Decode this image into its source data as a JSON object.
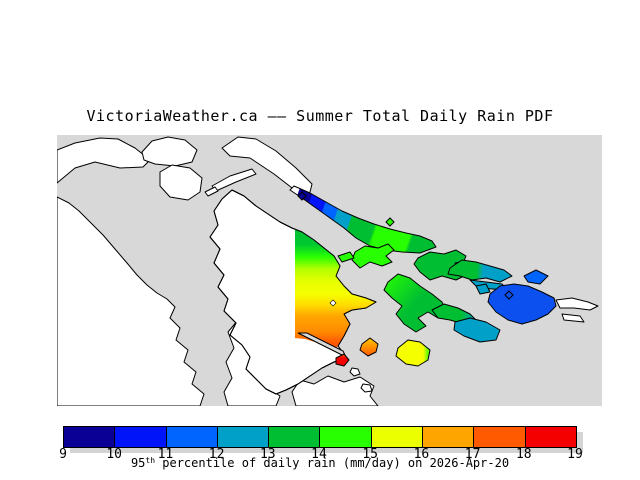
{
  "title": "VictoriaWeather.ca —— Summer Total Daily Rain PDF",
  "map": {
    "sea_color": "#D8D8D8",
    "land_color": "#FFFFFF",
    "coastline_color": "#000000",
    "station_marker_shape": "diamond",
    "shades": {
      "navy": "#0A0096",
      "blue": "#0014FA",
      "bright_blue": "#0064FF",
      "island_blue": "#0C50F0",
      "teal": "#00A0C8",
      "green": "#00BE32",
      "bright_green": "#28FF00",
      "yellow_green": "#B4FF00",
      "yellow": "#F5FF00",
      "amber": "#FFC800",
      "orange": "#FFA500",
      "deep_orange": "#FF5A00",
      "red": "#F50000"
    }
  },
  "colorbar": {
    "min": 9,
    "max": 19,
    "unit": "mm/day",
    "ticks": [
      "9",
      "10",
      "11",
      "12",
      "13",
      "14",
      "15",
      "16",
      "17",
      "18",
      "19"
    ],
    "segments": [
      {
        "from": 9,
        "to": 10,
        "color": "#0A0096"
      },
      {
        "from": 10,
        "to": 11,
        "color": "#0014FA"
      },
      {
        "from": 11,
        "to": 12,
        "color": "#0064FF"
      },
      {
        "from": 12,
        "to": 13,
        "color": "#00A0C8"
      },
      {
        "from": 13,
        "to": 14,
        "color": "#00BE32"
      },
      {
        "from": 14,
        "to": 15,
        "color": "#28FF00"
      },
      {
        "from": 15,
        "to": 16,
        "color": "#EBFF00"
      },
      {
        "from": 16,
        "to": 17,
        "color": "#FFA500"
      },
      {
        "from": 17,
        "to": 18,
        "color": "#FF5A00"
      },
      {
        "from": 18,
        "to": 19,
        "color": "#F50000"
      }
    ],
    "caption": {
      "prefix": "95",
      "sup": "th",
      "rest": " percentile of daily rain (mm/day) on 2026-Apr-20"
    }
  }
}
